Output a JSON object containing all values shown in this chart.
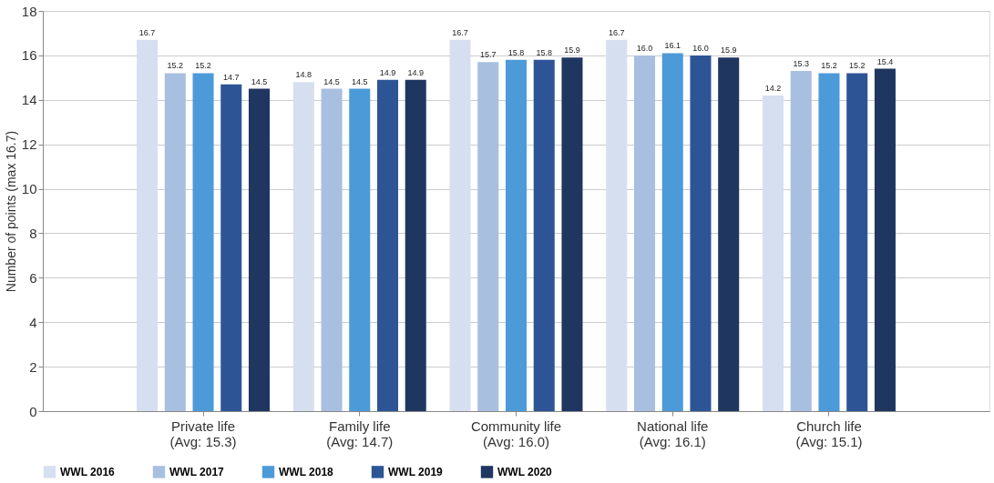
{
  "chart_data": {
    "type": "bar",
    "ylabel": "Number of points (max 16.7)",
    "categories": [
      "Private life\n(Avg: 15.3)",
      "Family life\n(Avg: 14.7)",
      "Community life\n(Avg: 16.0)",
      "National life\n(Avg: 16.1)",
      "Church life\n(Avg: 15.1)"
    ],
    "series": [
      {
        "name": "WWL 2016",
        "color": "#d6dff0",
        "values": [
          16.7,
          14.8,
          16.7,
          16.7,
          14.2
        ],
        "value_labels": [
          "16.7",
          "14.8",
          "16.7",
          "16.7",
          "14.2"
        ]
      },
      {
        "name": "WWL 2017",
        "color": "#a9bfe0",
        "values": [
          15.2,
          14.5,
          15.7,
          16.0,
          15.3
        ],
        "value_labels": [
          "15.2",
          "14.5",
          "15.7",
          "16.0",
          "15.3"
        ]
      },
      {
        "name": "WWL 2018",
        "color": "#4c9ad8",
        "values": [
          15.2,
          14.5,
          15.8,
          16.1,
          15.2
        ],
        "value_labels": [
          "15.2",
          "14.5",
          "15.8",
          "16.1",
          "15.2"
        ]
      },
      {
        "name": "WWL 2019",
        "color": "#2d5596",
        "values": [
          14.7,
          14.9,
          15.8,
          16.0,
          15.2
        ],
        "value_labels": [
          "14.7",
          "14.9",
          "15.8",
          "16.0",
          "15.2"
        ]
      },
      {
        "name": "WWL 2020",
        "color": "#1f3660",
        "values": [
          14.5,
          14.9,
          15.9,
          15.9,
          15.4
        ],
        "value_labels": [
          "14.5",
          "14.9",
          "15.9",
          "15.9",
          "15.4"
        ]
      }
    ],
    "ylim": [
      0,
      18
    ],
    "yticks": [
      0,
      2,
      4,
      6,
      8,
      10,
      12,
      14,
      16,
      18
    ],
    "grid": "y",
    "legend": "bottom"
  }
}
